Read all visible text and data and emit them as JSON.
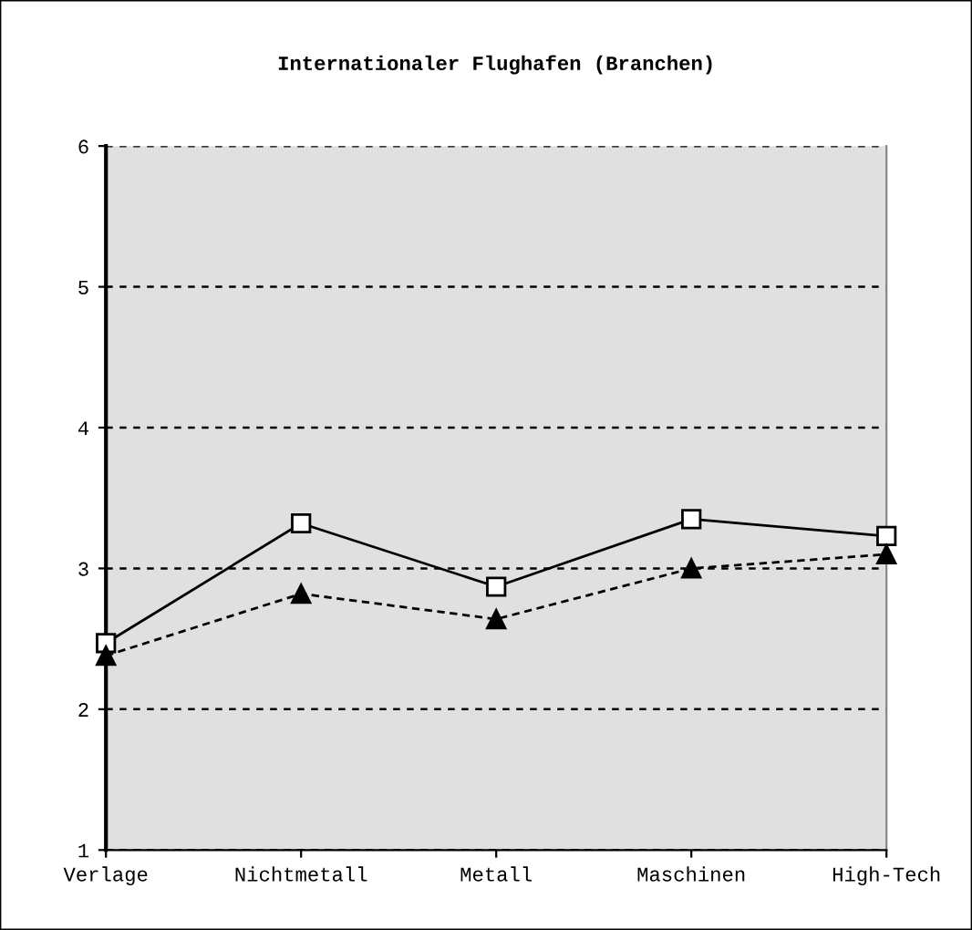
{
  "chart_data": {
    "type": "line",
    "title": "Internationaler Flughafen (Branchen)",
    "categories": [
      "Verlage",
      "Nichtmetall",
      "Metall",
      "Maschinen",
      "High-Tech"
    ],
    "series": [
      {
        "color": "#000000",
        "marker": "square",
        "line_style": "solid",
        "values": [
          2.47,
          3.32,
          2.87,
          3.35,
          3.23
        ]
      },
      {
        "color": "#000000",
        "marker": "triangle",
        "line_style": "dashed",
        "values": [
          2.38,
          2.82,
          2.64,
          3.0,
          3.1
        ]
      }
    ],
    "ylim": [
      1,
      6
    ],
    "yticks": [
      1,
      2,
      3,
      4,
      5,
      6
    ],
    "grid": "y",
    "legend": false
  }
}
